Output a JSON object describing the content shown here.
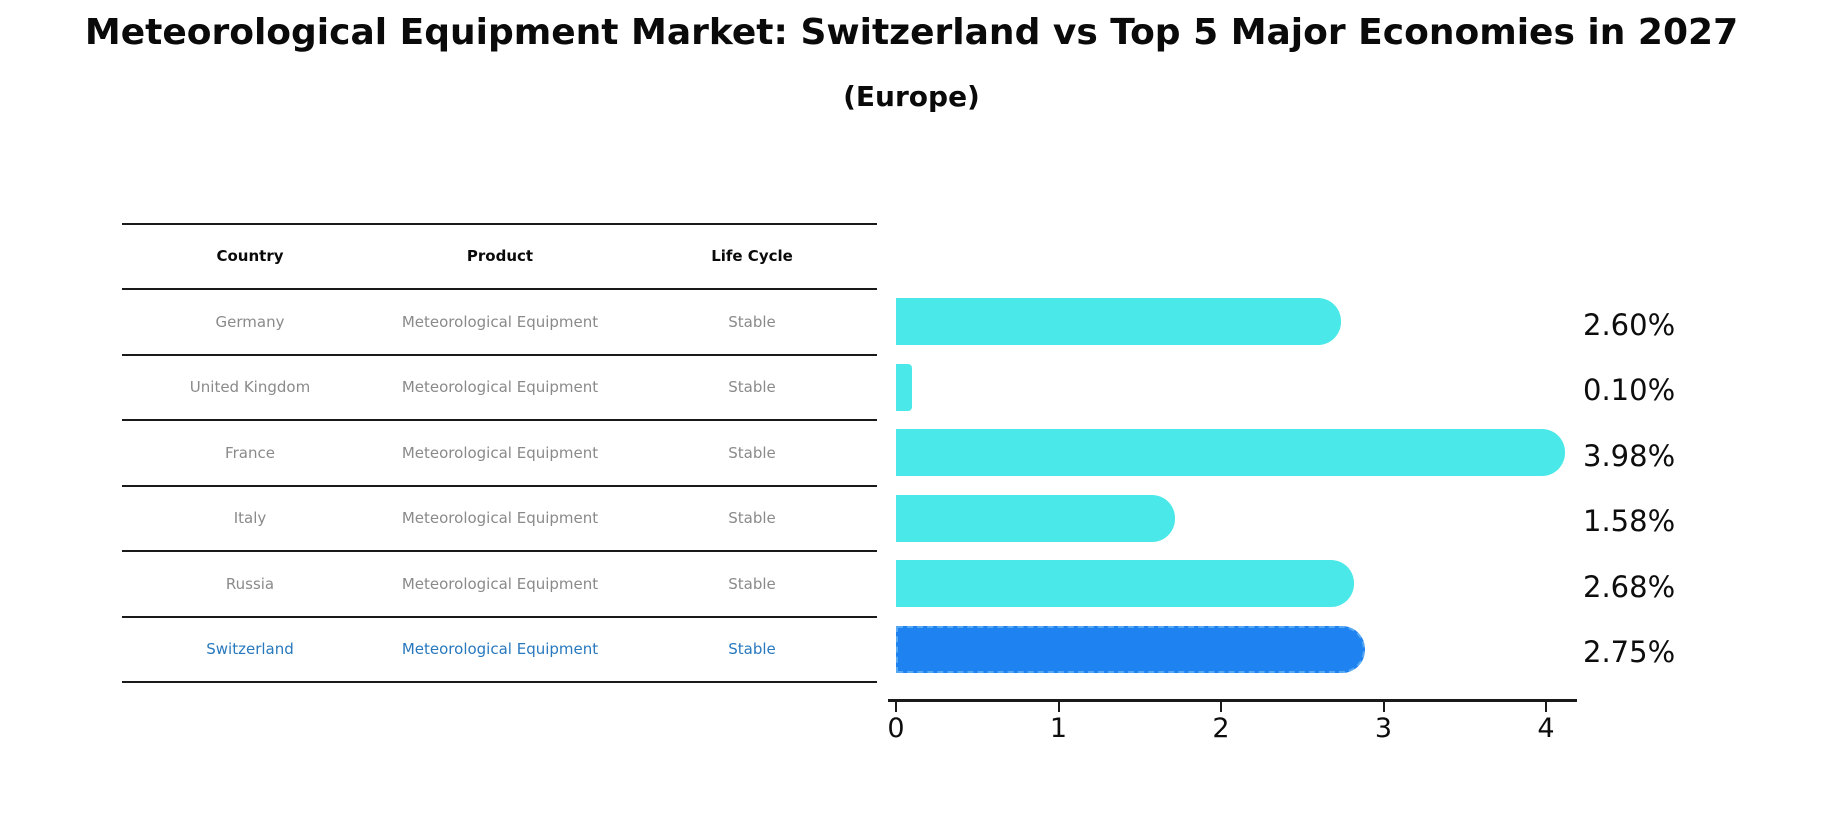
{
  "title": "Meteorological Equipment Market: Switzerland vs Top 5 Major Economies in 2027",
  "subtitle": "(Europe)",
  "table": {
    "headers": [
      "Country",
      "Product",
      "Life Cycle"
    ],
    "rows": [
      {
        "country": "Germany",
        "product": "Meteorological Equipment",
        "life_cycle": "Stable",
        "highlight": false
      },
      {
        "country": "United Kingdom",
        "product": "Meteorological Equipment",
        "life_cycle": "Stable",
        "highlight": false
      },
      {
        "country": "France",
        "product": "Meteorological Equipment",
        "life_cycle": "Stable",
        "highlight": false
      },
      {
        "country": "Italy",
        "product": "Meteorological Equipment",
        "life_cycle": "Stable",
        "highlight": false
      },
      {
        "country": "Russia",
        "product": "Meteorological Equipment",
        "life_cycle": "Stable",
        "highlight": true
      }
    ]
  },
  "chart_data": {
    "type": "bar",
    "orientation": "horizontal",
    "title": "Meteorological Equipment Market: Switzerland vs Top 5 Major Economies in 2027",
    "subtitle": "(Europe)",
    "categories": [
      "Germany",
      "United Kingdom",
      "France",
      "Italy",
      "Russia",
      "Switzerland"
    ],
    "values": [
      2.6,
      0.1,
      3.98,
      1.58,
      2.68,
      2.75
    ],
    "value_labels": [
      "2.60%",
      "0.10%",
      "3.98%",
      "1.58%",
      "2.68%",
      "2.75%"
    ],
    "highlight_index": 5,
    "xlim": [
      0,
      4.2
    ],
    "xticks": [
      "0",
      "1",
      "2",
      "3",
      "4"
    ],
    "grid": false,
    "legend": "none",
    "bar_color": "#4ae8e8",
    "highlight_bar_color": "#1e82f0",
    "highlight_border_color": "#56a8f2",
    "highlight_text_color": "#2878be",
    "row_text_color": "#8a8a8a",
    "axis_color": "#1a1a1a",
    "label_color": "#0d0d0d"
  }
}
